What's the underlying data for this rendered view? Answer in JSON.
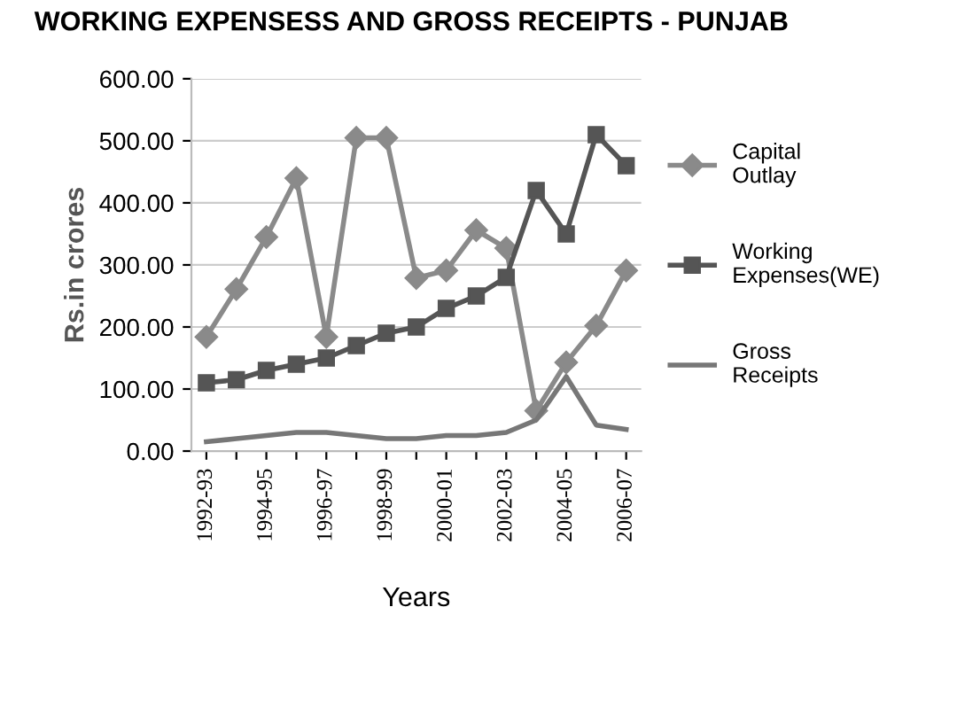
{
  "chart_data": {
    "type": "line",
    "title": "WORKING EXPENSESS AND GROSS RECEIPTS - PUNJAB",
    "xlabel": "Years",
    "ylabel": "Rs.in crores",
    "categories": [
      "1992-93",
      null,
      "1994-95",
      null,
      "1996-97",
      null,
      "1998-99",
      null,
      "2000-01",
      null,
      "2002-03",
      null,
      "2004-05",
      null,
      "2006-07"
    ],
    "series": [
      {
        "name": "Capital Outlay",
        "color": "#8a8a8a",
        "marker": "diamond",
        "values": [
          184,
          261,
          345,
          440,
          184,
          505,
          505,
          279,
          291,
          356,
          327,
          65,
          143,
          202,
          291
        ]
      },
      {
        "name": "Working Expenses(WE)",
        "color": "#555555",
        "marker": "square",
        "values": [
          110,
          115,
          130,
          140,
          150,
          170,
          190,
          200,
          230,
          250,
          280,
          420,
          350,
          510,
          460
        ]
      },
      {
        "name": "Gross Receipts",
        "color": "#777777",
        "marker": "none",
        "values": [
          15,
          20,
          25,
          30,
          30,
          25,
          20,
          20,
          25,
          25,
          30,
          50,
          120,
          42,
          35
        ]
      }
    ],
    "ylim": [
      0,
      600
    ],
    "yticks": [
      {
        "value": 0,
        "label": "0.00"
      },
      {
        "value": 100,
        "label": "100.00"
      },
      {
        "value": 200,
        "label": "200.00"
      },
      {
        "value": 300,
        "label": "300.00"
      },
      {
        "value": 400,
        "label": "400.00"
      },
      {
        "value": 500,
        "label": "500.00"
      },
      {
        "value": 600,
        "label": "600.00"
      }
    ],
    "grid": "y",
    "legend": "right"
  }
}
